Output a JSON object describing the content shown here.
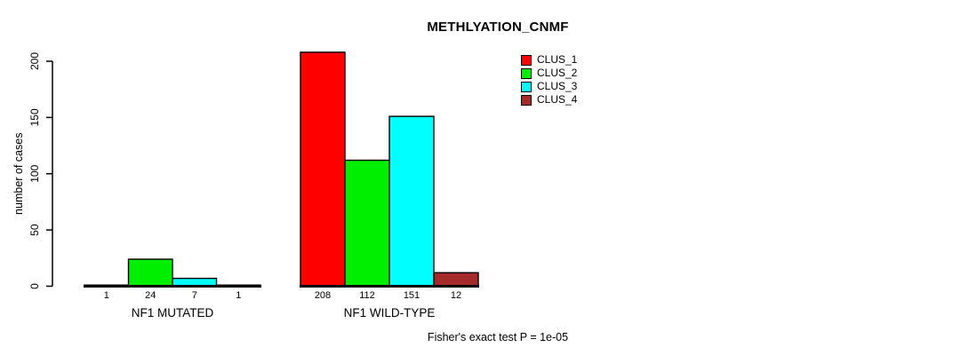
{
  "chart_data": {
    "type": "bar",
    "title": "METHLYATION_CNMF",
    "xlabel": "",
    "ylabel": "number of cases",
    "ylim": [
      0,
      200
    ],
    "yticks": [
      0,
      50,
      100,
      150,
      200
    ],
    "grid": false,
    "legend_position": "top-right",
    "categories": [
      "NF1 MUTATED",
      "NF1 WILD-TYPE"
    ],
    "series": [
      {
        "name": "CLUS_1",
        "color": "#ff0000",
        "values": [
          1,
          208
        ]
      },
      {
        "name": "CLUS_2",
        "color": "#00ee00",
        "values": [
          24,
          112
        ]
      },
      {
        "name": "CLUS_3",
        "color": "#00ffff",
        "values": [
          7,
          151
        ]
      },
      {
        "name": "CLUS_4",
        "color": "#a52a2a",
        "values": [
          1,
          12
        ]
      }
    ],
    "bar_value_labels": true,
    "annotation": "Fisher's exact test P = 1e-05"
  },
  "colors": {
    "axis": "#000000",
    "text": "#000000",
    "background": "#ffffff"
  }
}
